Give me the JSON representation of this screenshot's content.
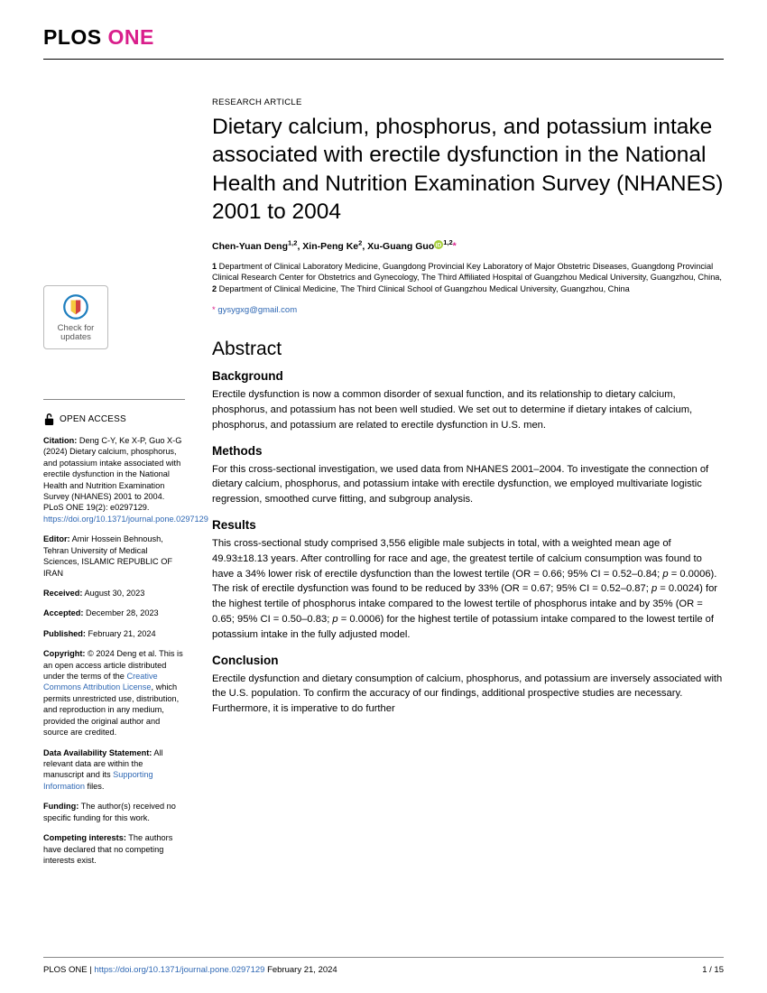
{
  "journal": {
    "plos": "PLOS",
    "one": "ONE"
  },
  "article_type": "RESEARCH ARTICLE",
  "title": "Dietary calcium, phosphorus, and potassium intake associated with erectile dysfunction in the National Health and Nutrition Examination Survey (NHANES) 2001 to 2004",
  "authors_html": "Chen-Yuan Deng<sup>1,2</sup>, Xin-Peng Ke<sup>2</sup>, Xu-Guang Guo",
  "author_last_sup": "1,2",
  "affiliations": "1  Department of Clinical Laboratory Medicine, Guangdong Provincial Key Laboratory of Major Obstetric Diseases, Guangdong Provincial Clinical Research Center for Obstetrics and Gynecology, The Third Affiliated Hospital of Guangzhou Medical University, Guangzhou, China, 2  Department of Clinical Medicine, The Third Clinical School of Guangzhou Medical University, Guangzhou, China",
  "corr_marker": "*",
  "corr_email": "gysygxg@gmail.com",
  "abstract_heading": "Abstract",
  "sections": {
    "background": {
      "h": "Background",
      "p": "Erectile dysfunction is now a common disorder of sexual function, and its relationship to dietary calcium, phosphorus, and potassium has not been well studied. We set out to determine if dietary intakes of calcium, phosphorus, and potassium are related to erectile dysfunction in U.S. men."
    },
    "methods": {
      "h": "Methods",
      "p": "For this cross-sectional investigation, we used data from NHANES 2001–2004. To investigate the connection of dietary calcium, phosphorus, and potassium intake with erectile dysfunction, we employed multivariate logistic regression, smoothed curve fitting, and subgroup analysis."
    },
    "results": {
      "h": "Results",
      "p": "This cross-sectional study comprised 3,556 eligible male subjects in total, with a weighted mean age of 49.93±18.13 years. After controlling for race and age, the greatest tertile of calcium consumption was found to have a 34% lower risk of erectile dysfunction than the lowest tertile (OR = 0.66; 95% CI = 0.52–0.84; p = 0.0006). The risk of erectile dysfunction was found to be reduced by 33% (OR = 0.67; 95% CI = 0.52–0.87; p = 0.0024) for the highest tertile of phosphorus intake compared to the lowest tertile of phosphorus intake and by 35% (OR = 0.65; 95% CI = 0.50–0.83; p = 0.0006) for the highest tertile of potassium intake compared to the lowest tertile of potassium intake in the fully adjusted model."
    },
    "conclusion": {
      "h": "Conclusion",
      "p": "Erectile dysfunction and dietary consumption of calcium, phosphorus, and potassium are inversely associated with the U.S. population. To confirm the accuracy of our findings, additional prospective studies are necessary. Furthermore, it is imperative to do further"
    }
  },
  "sidebar": {
    "check_updates": "Check for updates",
    "open_access": "OPEN ACCESS",
    "citation_label": "Citation:",
    "citation_text": " Deng C-Y, Ke X-P, Guo X-G (2024) Dietary calcium, phosphorus, and potassium intake associated with erectile dysfunction in the National Health and Nutrition Examination Survey (NHANES) 2001 to 2004. PLoS ONE 19(2): e0297129. ",
    "citation_link": "https://doi.org/10.1371/journal.pone.0297129",
    "editor_label": "Editor:",
    "editor_text": " Amir Hossein Behnoush, Tehran University of Medical Sciences, ISLAMIC REPUBLIC OF IRAN",
    "received_label": "Received:",
    "received_text": " August 30, 2023",
    "accepted_label": "Accepted:",
    "accepted_text": " December 28, 2023",
    "published_label": "Published:",
    "published_text": " February 21, 2024",
    "copyright_label": "Copyright:",
    "copyright_text_pre": " © 2024 Deng et al. This is an open access article distributed under the terms of the ",
    "copyright_link": "Creative Commons Attribution License",
    "copyright_text_post": ", which permits unrestricted use, distribution, and reproduction in any medium, provided the original author and source are credited.",
    "data_label": "Data Availability Statement:",
    "data_text_pre": " All relevant data are within the manuscript and its ",
    "data_link": "Supporting Information",
    "data_text_post": " files.",
    "funding_label": "Funding:",
    "funding_text": " The author(s) received no specific funding for this work.",
    "competing_label": "Competing interests:",
    "competing_text": " The authors have declared that no competing interests exist."
  },
  "footer": {
    "journal": "PLOS ONE | ",
    "doi": "https://doi.org/10.1371/journal.pone.0297129",
    "date": "   February 21, 2024",
    "page": "1 / 15"
  },
  "colors": {
    "brand_pink": "#d91e8b",
    "link_blue": "#2f68b4",
    "orcid_green": "#a6ce39",
    "badge_blue": "#1f7fbf",
    "badge_red": "#d24040",
    "badge_yellow": "#f5c93d"
  }
}
